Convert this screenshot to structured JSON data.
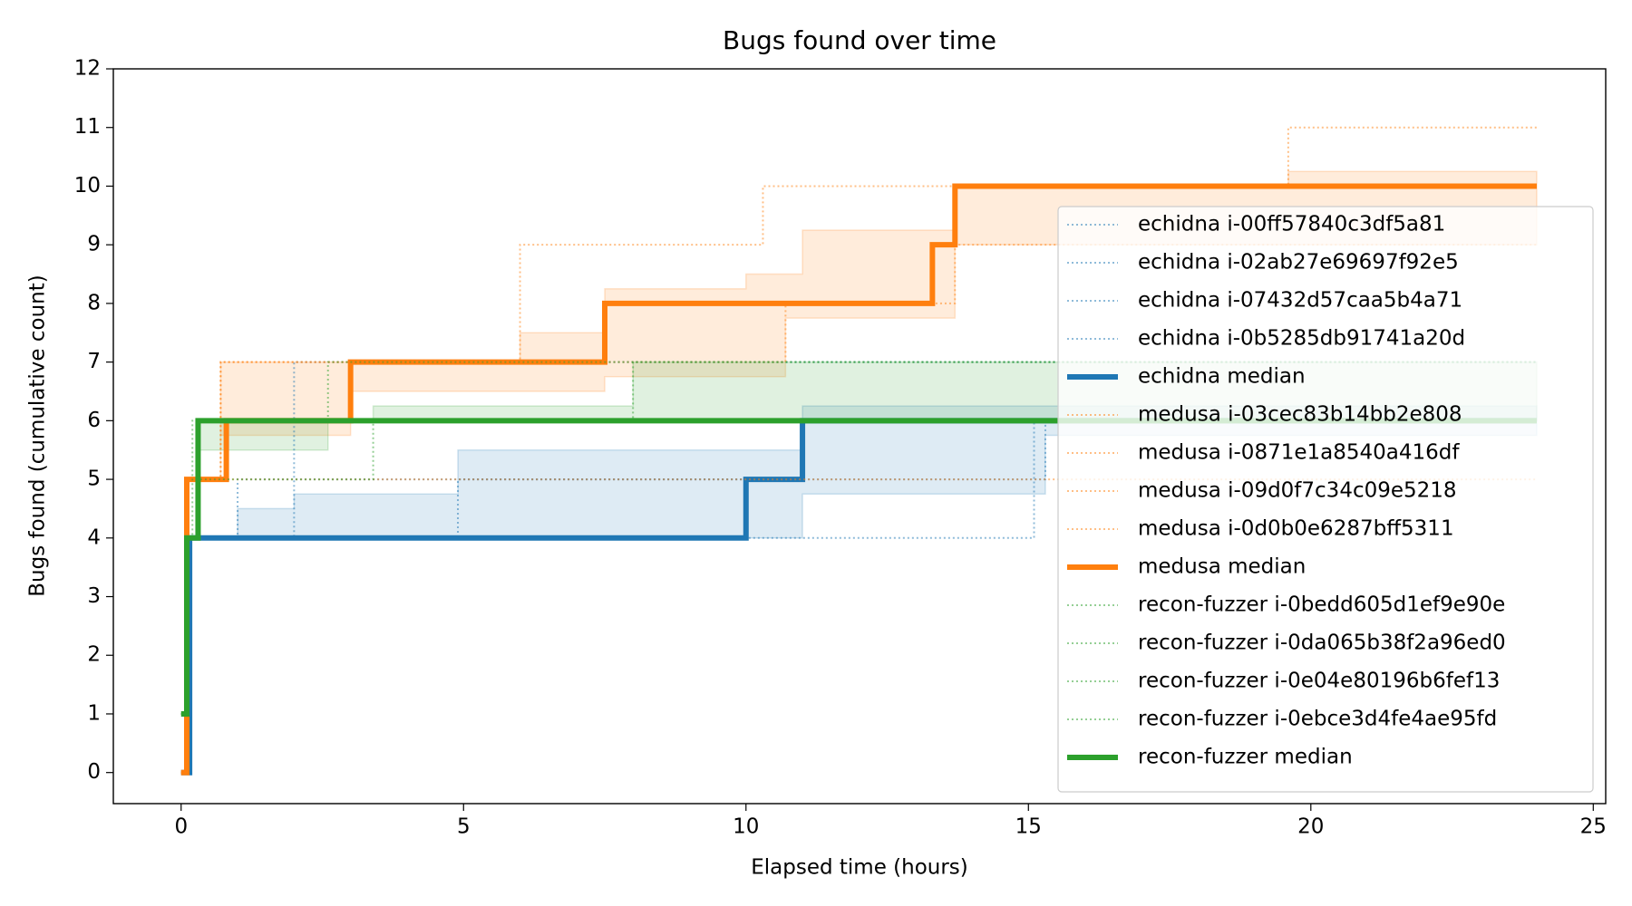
{
  "chart_data": {
    "type": "step",
    "title": "Bugs found over time",
    "x_label": "Elapsed time (hours)",
    "y_label": "Bugs found (cumulative count)",
    "xlim": [
      -1.2,
      25.22
    ],
    "xticks": [
      0,
      5,
      10,
      15,
      20,
      25
    ],
    "ylim": [
      -0.53,
      12
    ],
    "yticks": [
      0,
      1,
      2,
      3,
      4,
      5,
      6,
      7,
      8,
      9,
      10,
      11,
      12
    ],
    "legend": "right",
    "bands": [
      {
        "color": "#1f77b4",
        "x": [
          0,
          0.15,
          1,
          2,
          4.9,
          11,
          15.3,
          24
        ],
        "low": [
          0,
          4,
          4,
          4,
          4,
          4.75,
          5.75,
          5.75
        ],
        "high": [
          0,
          4,
          4.5,
          4.75,
          5.5,
          6.25,
          6.25,
          6.25
        ]
      },
      {
        "color": "#ff7f0e",
        "x": [
          0,
          0.1,
          0.7,
          3,
          6,
          7.5,
          10,
          10.7,
          11,
          13.3,
          13.7,
          19.6,
          24
        ],
        "low": [
          0,
          5,
          5.75,
          6.5,
          6.5,
          6.75,
          6.75,
          7.75,
          7.75,
          7.75,
          9,
          9,
          9
        ],
        "high": [
          0,
          5,
          7,
          7,
          7.5,
          8.25,
          8.5,
          8.5,
          9.25,
          9.25,
          10,
          10.25,
          10.25
        ]
      },
      {
        "color": "#2ca02c",
        "x": [
          0,
          0.1,
          0.3,
          2.6,
          3.4,
          8,
          24
        ],
        "low": [
          1,
          4,
          5.5,
          6,
          6,
          6,
          6
        ],
        "high": [
          1,
          4,
          6,
          6,
          6.25,
          7,
          7
        ]
      }
    ],
    "series": [
      {
        "name": "echidna i-00ff57840c3df5a81",
        "color": "#1f77b4",
        "style": "dotted",
        "x": [
          0,
          0.15,
          2.0,
          24
        ],
        "values": [
          0,
          4,
          7,
          7
        ]
      },
      {
        "name": "echidna i-02ab27e69697f92e5",
        "color": "#1f77b4",
        "style": "dotted",
        "x": [
          0,
          0.15,
          1.0,
          11,
          24
        ],
        "values": [
          0,
          4,
          5,
          6,
          6
        ]
      },
      {
        "name": "echidna i-07432d57caa5b4a71",
        "color": "#1f77b4",
        "style": "dotted",
        "x": [
          0,
          0.15,
          15.1,
          24
        ],
        "values": [
          0,
          4,
          6,
          6
        ]
      },
      {
        "name": "echidna i-0b5285db91741a20d",
        "color": "#1f77b4",
        "style": "dotted",
        "x": [
          0,
          0.15,
          4.9,
          15.3,
          24
        ],
        "values": [
          0,
          4,
          5,
          6,
          6
        ]
      },
      {
        "name": "echidna median",
        "color": "#1f77b4",
        "style": "solid",
        "x": [
          0,
          0.15,
          10,
          11,
          24
        ],
        "values": [
          0,
          4,
          5,
          6,
          6
        ]
      },
      {
        "name": "medusa i-03cec83b14bb2e808",
        "color": "#ff7f0e",
        "style": "dotted",
        "x": [
          0,
          0.1,
          0.7,
          6,
          10.3,
          19.6,
          24
        ],
        "values": [
          0,
          5,
          7,
          9,
          10,
          11,
          11
        ]
      },
      {
        "name": "medusa i-0871e1a8540a416df",
        "color": "#ff7f0e",
        "style": "dotted",
        "x": [
          0,
          0.1,
          0.7,
          10.7,
          13.3,
          24
        ],
        "values": [
          0,
          5,
          7,
          8,
          9,
          9
        ]
      },
      {
        "name": "medusa i-09d0f7c34c09e5218",
        "color": "#ff7f0e",
        "style": "dotted",
        "x": [
          0,
          0.1,
          24
        ],
        "values": [
          0,
          5,
          5
        ]
      },
      {
        "name": "medusa i-0d0b0e6287bff5311",
        "color": "#ff7f0e",
        "style": "dotted",
        "x": [
          0,
          0.1,
          0.8,
          3,
          7.5,
          13.7,
          24
        ],
        "values": [
          0,
          5,
          6,
          7,
          8,
          10,
          10
        ]
      },
      {
        "name": "medusa median",
        "color": "#ff7f0e",
        "style": "solid",
        "x": [
          0,
          0.1,
          0.8,
          3,
          7.5,
          13.3,
          13.7,
          24
        ],
        "values": [
          0,
          5,
          6,
          7,
          8,
          9,
          10,
          10
        ]
      },
      {
        "name": "recon-fuzzer i-0bedd605d1ef9e90e",
        "color": "#2ca02c",
        "style": "dotted",
        "x": [
          0,
          0.1,
          0.2,
          8,
          24
        ],
        "values": [
          1,
          4,
          6,
          7,
          7
        ]
      },
      {
        "name": "recon-fuzzer i-0da065b38f2a96ed0",
        "color": "#2ca02c",
        "style": "dotted",
        "x": [
          0,
          0.1,
          0.3,
          2.6,
          24
        ],
        "values": [
          1,
          4,
          6,
          7,
          7
        ]
      },
      {
        "name": "recon-fuzzer i-0e04e80196b6fef13",
        "color": "#2ca02c",
        "style": "dotted",
        "x": [
          0,
          0.1,
          0.3,
          3.4,
          24
        ],
        "values": [
          1,
          4,
          5,
          6,
          6
        ]
      },
      {
        "name": "recon-fuzzer i-0ebce3d4fe4ae95fd",
        "color": "#2ca02c",
        "style": "dotted",
        "x": [
          0,
          0.1,
          0.3,
          24
        ],
        "values": [
          1,
          4,
          6,
          6
        ]
      },
      {
        "name": "recon-fuzzer median",
        "color": "#2ca02c",
        "style": "solid",
        "x": [
          0,
          0.1,
          0.3,
          24
        ],
        "values": [
          1,
          4,
          6,
          6
        ]
      }
    ]
  }
}
